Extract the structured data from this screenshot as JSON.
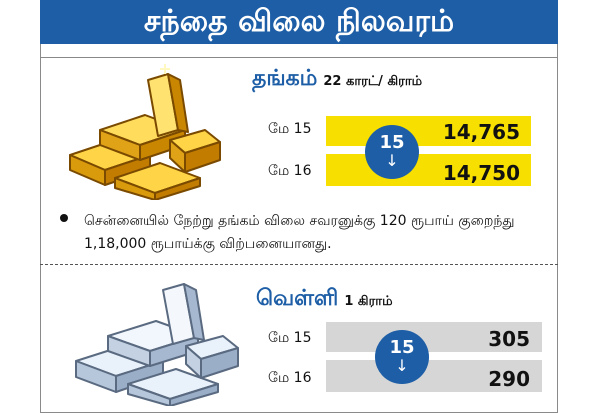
{
  "header": {
    "title": "சந்தை விலை நிலவரம்"
  },
  "gold": {
    "name": "தங்கம்",
    "unit": "22 காரட்/ கிராம்",
    "rows": [
      {
        "date": "மே 15",
        "price": "14,765"
      },
      {
        "date": "மே 16",
        "price": "14,750"
      }
    ],
    "change": {
      "value": "15",
      "arrow": "↓"
    },
    "note": "சென்னையில் நேற்று தங்கம் விலை சவரனுக்கு 120 ரூபாய் குறைந்து 1,18,000 ரூபாய்க்கு விற்பனையானது."
  },
  "silver": {
    "name": "வெள்ளி",
    "unit": "1 கிராம்",
    "rows": [
      {
        "date": "மே 15",
        "price": "305"
      },
      {
        "date": "மே 16",
        "price": "290"
      }
    ],
    "change": {
      "value": "15",
      "arrow": "↓"
    }
  },
  "colors": {
    "header": "#1d5ea6",
    "gold_bar": "#f7e000",
    "silver_bar": "#d6d6d6"
  },
  "icons": {
    "gold": "gold-bars-icon",
    "silver": "silver-bars-icon"
  }
}
